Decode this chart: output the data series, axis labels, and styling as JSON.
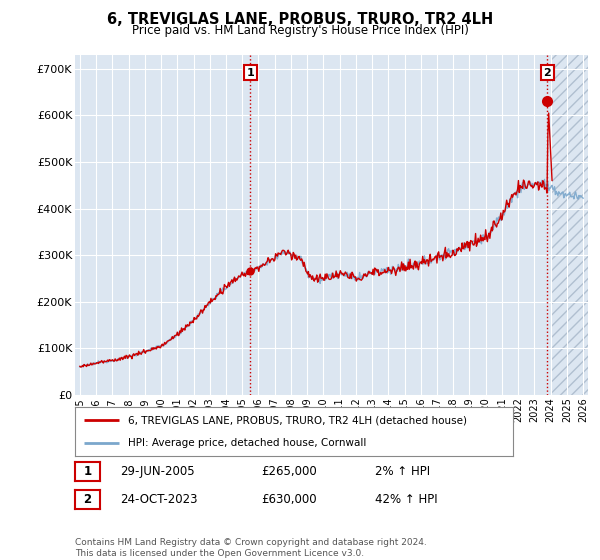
{
  "title": "6, TREVIGLAS LANE, PROBUS, TRURO, TR2 4LH",
  "subtitle": "Price paid vs. HM Land Registry's House Price Index (HPI)",
  "plot_bg_color": "#dce6f1",
  "outer_bg_color": "#ffffff",
  "line_color_red": "#cc0000",
  "line_color_blue": "#7ba7cc",
  "grid_color": "#ffffff",
  "hatch_color": "#b0bfd0",
  "yticks": [
    0,
    100000,
    200000,
    300000,
    400000,
    500000,
    600000,
    700000
  ],
  "ytick_labels": [
    "£0",
    "£100K",
    "£200K",
    "£300K",
    "£400K",
    "£500K",
    "£600K",
    "£700K"
  ],
  "year_start": 1995,
  "year_end": 2026,
  "sale1_year": 2005.5,
  "sale1_price": 265000,
  "sale2_year": 2023.8,
  "sale2_price": 630000,
  "cutoff_year": 2024.1,
  "legend_label_red": "6, TREVIGLAS LANE, PROBUS, TRURO, TR2 4LH (detached house)",
  "legend_label_blue": "HPI: Average price, detached house, Cornwall",
  "annotation1_label": "1",
  "annotation1_date": "29-JUN-2005",
  "annotation1_price": "£265,000",
  "annotation1_hpi": "2% ↑ HPI",
  "annotation2_label": "2",
  "annotation2_date": "24-OCT-2023",
  "annotation2_price": "£630,000",
  "annotation2_hpi": "42% ↑ HPI",
  "footer": "Contains HM Land Registry data © Crown copyright and database right 2024.\nThis data is licensed under the Open Government Licence v3.0."
}
